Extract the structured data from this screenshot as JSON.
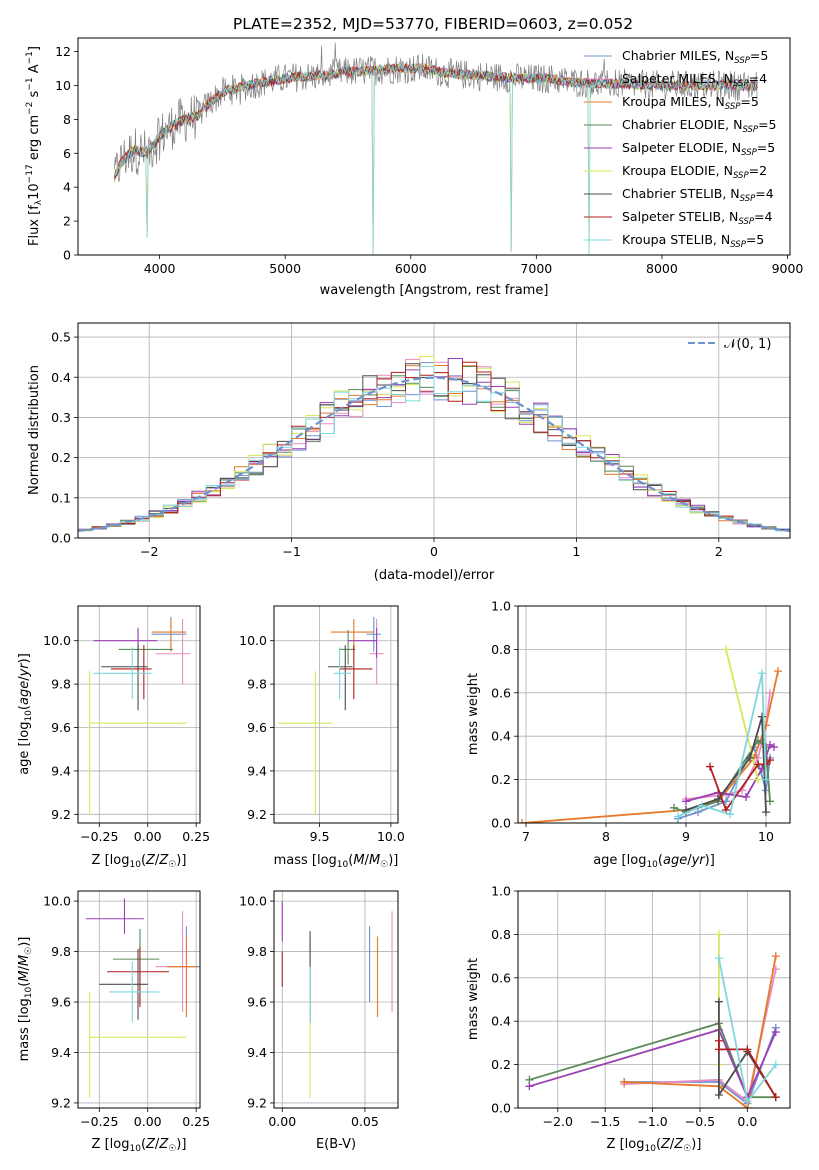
{
  "figure_title": "PLATE=2352, MJD=53770, FIBERID=0603, z=0.052",
  "model_colors": [
    "#6f93d0",
    "#e58ec3",
    "#e6792a",
    "#5a8a5a",
    "#9b3fb5",
    "#d6e85a",
    "#4d4d4d",
    "#b01f1f",
    "#7fd6dc"
  ],
  "chart_data": [
    {
      "id": "spectrum",
      "type": "line",
      "xlabel": "wavelength [Angstrom, rest frame]",
      "ylabel": "Flux [f_λ10^-17 erg cm^-2 s^-1 A^-1]",
      "xlim": [
        3350,
        9020
      ],
      "ylim": [
        0,
        12.8
      ],
      "xticks": [
        4000,
        5000,
        6000,
        7000,
        8000,
        9000
      ],
      "yticks": [
        0,
        2,
        4,
        6,
        8,
        10,
        12
      ],
      "grid": false,
      "legend_position": "right",
      "legend": [
        {
          "label": "Chabrier MILES, N",
          "sub": "SSP",
          "suffix": "=5"
        },
        {
          "label": "Salpeter MILES, N",
          "sub": "SSP",
          "suffix": "=4"
        },
        {
          "label": "Kroupa MILES, N",
          "sub": "SSP",
          "suffix": "=5"
        },
        {
          "label": "Chabrier ELODIE, N",
          "sub": "SSP",
          "suffix": "=5"
        },
        {
          "label": "Salpeter ELODIE, N",
          "sub": "SSP",
          "suffix": "=5"
        },
        {
          "label": "Kroupa ELODIE, N",
          "sub": "SSP",
          "suffix": "=2"
        },
        {
          "label": "Chabrier STELIB, N",
          "sub": "SSP",
          "suffix": "=4"
        },
        {
          "label": "Salpeter STELIB, N",
          "sub": "SSP",
          "suffix": "=4"
        },
        {
          "label": "Kroupa STELIB, N",
          "sub": "SSP",
          "suffix": "=5"
        }
      ],
      "continuum": [
        [
          3640,
          4.6
        ],
        [
          3700,
          5.6
        ],
        [
          3800,
          6.2
        ],
        [
          3900,
          6.0
        ],
        [
          4000,
          7.0
        ],
        [
          4100,
          7.6
        ],
        [
          4200,
          8.0
        ],
        [
          4300,
          8.2
        ],
        [
          4400,
          9.0
        ],
        [
          4500,
          9.6
        ],
        [
          4700,
          10.0
        ],
        [
          4900,
          10.3
        ],
        [
          5100,
          10.5
        ],
        [
          5300,
          10.6
        ],
        [
          5500,
          10.8
        ],
        [
          5700,
          10.9
        ],
        [
          5900,
          11.0
        ],
        [
          6100,
          11.0
        ],
        [
          6300,
          10.7
        ],
        [
          6500,
          10.6
        ],
        [
          6700,
          10.5
        ],
        [
          6900,
          10.4
        ],
        [
          7100,
          10.4
        ],
        [
          7300,
          10.2
        ],
        [
          7500,
          10.1
        ],
        [
          7700,
          10.1
        ],
        [
          7900,
          10.0
        ],
        [
          8100,
          10.0
        ],
        [
          8300,
          10.0
        ],
        [
          8500,
          10.0
        ],
        [
          8700,
          10.0
        ]
      ],
      "observed_range": [
        3640,
        8760
      ],
      "dips": [
        [
          3900,
          1.0
        ],
        [
          5700,
          0.0
        ],
        [
          6800,
          0.2
        ],
        [
          7420,
          0.0
        ]
      ]
    },
    {
      "id": "residuals",
      "type": "step",
      "xlabel": "(data-model)/error",
      "ylabel": "Normed distribution",
      "xlim": [
        -2.5,
        2.5
      ],
      "ylim": [
        0,
        0.535
      ],
      "xticks": [
        -2,
        -1,
        0,
        1,
        2
      ],
      "yticks": [
        0.0,
        0.1,
        0.2,
        0.3,
        0.4,
        0.5
      ],
      "grid": true,
      "bin_width": 0.1,
      "legend": [
        {
          "label": "𝒩(0, 1)"
        }
      ],
      "legend_position": "top-right",
      "reference_curve": "normal(0,1)"
    },
    {
      "id": "age_vs_Z",
      "type": "errorbar",
      "xlabel": "Z [log10(Z/Z☉)]",
      "ylabel": "age  [log10(age/yr)]",
      "xlim": [
        -0.36,
        0.27
      ],
      "ylim": [
        9.16,
        10.16
      ],
      "xticks": [
        -0.25,
        0.0,
        0.25
      ],
      "yticks": [
        9.2,
        9.4,
        9.6,
        9.8,
        10.0
      ],
      "grid": true,
      "points": [
        {
          "x": 0.12,
          "y": 10.03,
          "xerr": [
            0.1,
            0.08
          ],
          "yerr": [
            0.08,
            0.08
          ],
          "series": 0
        },
        {
          "x": 0.18,
          "y": 9.94,
          "xerr": [
            0.14,
            0.04
          ],
          "yerr": [
            0.14,
            0.16
          ],
          "series": 1
        },
        {
          "x": 0.12,
          "y": 10.04,
          "xerr": [
            0.1,
            0.08
          ],
          "yerr": [
            0.09,
            0.06
          ],
          "series": 2
        },
        {
          "x": -0.05,
          "y": 9.96,
          "xerr": [
            0.1,
            0.18
          ],
          "yerr": [
            0.07,
            0.09
          ],
          "series": 3
        },
        {
          "x": -0.05,
          "y": 10.0,
          "xerr": [
            0.23,
            0.1
          ],
          "yerr": [
            0.08,
            0.06
          ],
          "series": 4
        },
        {
          "x": -0.3,
          "y": 9.62,
          "xerr": [
            0.0,
            0.5
          ],
          "yerr": [
            0.42,
            0.24
          ],
          "series": 5
        },
        {
          "x": -0.05,
          "y": 9.88,
          "xerr": [
            0.19,
            0.05
          ],
          "yerr": [
            0.2,
            0.1
          ],
          "series": 6
        },
        {
          "x": -0.02,
          "y": 9.87,
          "xerr": [
            0.17,
            0.04
          ],
          "yerr": [
            0.14,
            0.11
          ],
          "series": 7
        },
        {
          "x": -0.08,
          "y": 9.85,
          "xerr": [
            0.2,
            0.1
          ],
          "yerr": [
            0.12,
            0.12
          ],
          "series": 8
        }
      ]
    },
    {
      "id": "age_vs_mass",
      "type": "errorbar",
      "xlabel": "mass [log10(M/M☉)]",
      "ylabel": "",
      "xlim": [
        9.18,
        10.05
      ],
      "ylim": [
        9.16,
        10.16
      ],
      "xticks": [
        9.5,
        10.0
      ],
      "yticks": [
        9.2,
        9.4,
        9.6,
        9.8,
        10.0
      ],
      "grid": true,
      "points": [
        {
          "x": 9.88,
          "y": 10.03,
          "xerr": [
            0.05,
            0.05
          ],
          "yerr": [
            0.08,
            0.08
          ],
          "series": 0
        },
        {
          "x": 9.9,
          "y": 9.94,
          "xerr": [
            0.05,
            0.05
          ],
          "yerr": [
            0.14,
            0.16
          ],
          "series": 1
        },
        {
          "x": 9.74,
          "y": 10.04,
          "xerr": [
            0.16,
            0.14
          ],
          "yerr": [
            0.09,
            0.06
          ],
          "series": 2
        },
        {
          "x": 9.7,
          "y": 9.96,
          "xerr": [
            0.06,
            0.05
          ],
          "yerr": [
            0.07,
            0.09
          ],
          "series": 3
        },
        {
          "x": 9.9,
          "y": 10.0,
          "xerr": [
            0.2,
            0.0
          ],
          "yerr": [
            0.08,
            0.06
          ],
          "series": 4
        },
        {
          "x": 9.47,
          "y": 9.62,
          "xerr": [
            0.26,
            0.12
          ],
          "yerr": [
            0.42,
            0.24
          ],
          "series": 5
        },
        {
          "x": 9.68,
          "y": 9.88,
          "xerr": [
            0.12,
            0.05
          ],
          "yerr": [
            0.2,
            0.1
          ],
          "series": 6
        },
        {
          "x": 9.74,
          "y": 9.87,
          "xerr": [
            0.1,
            0.13
          ],
          "yerr": [
            0.14,
            0.11
          ],
          "series": 7
        },
        {
          "x": 9.64,
          "y": 9.85,
          "xerr": [
            0.04,
            0.08
          ],
          "yerr": [
            0.12,
            0.12
          ],
          "series": 8
        }
      ]
    },
    {
      "id": "mass_weight_vs_age",
      "type": "line",
      "xlabel": "age  [log10(age/yr)]",
      "ylabel": "mass weight",
      "xlim": [
        6.9,
        10.3
      ],
      "ylim": [
        0,
        1.0
      ],
      "xticks": [
        7,
        8,
        9,
        10
      ],
      "yticks": [
        0.0,
        0.2,
        0.4,
        0.6,
        0.8,
        1.0
      ],
      "grid": true,
      "series": [
        {
          "x": [
            8.9,
            9.15,
            9.5,
            9.85,
            10.0,
            10.05
          ],
          "y": [
            0.02,
            0.05,
            0.1,
            0.35,
            0.15,
            0.3
          ],
          "series": 0
        },
        {
          "x": [
            9.0,
            9.5,
            9.7,
            9.9,
            10.0,
            10.05
          ],
          "y": [
            0.11,
            0.13,
            0.15,
            0.3,
            0.45,
            0.6
          ],
          "series": 1
        },
        {
          "x": [
            6.95,
            9.0,
            9.4,
            9.85,
            10.0,
            10.15
          ],
          "y": [
            0.0,
            0.06,
            0.1,
            0.3,
            0.45,
            0.7
          ],
          "series": 2
        },
        {
          "x": [
            8.85,
            9.0,
            9.4,
            9.9,
            10.0,
            10.05
          ],
          "y": [
            0.07,
            0.05,
            0.1,
            0.38,
            0.35,
            0.1
          ],
          "series": 3
        },
        {
          "x": [
            9.0,
            9.4,
            9.75,
            9.95,
            10.05,
            10.1
          ],
          "y": [
            0.1,
            0.14,
            0.12,
            0.25,
            0.36,
            0.35
          ],
          "series": 4
        },
        {
          "x": [
            9.5,
            9.9
          ],
          "y": [
            0.8,
            0.2
          ],
          "series": 5
        },
        {
          "x": [
            9.0,
            9.4,
            9.8,
            9.95,
            10.0
          ],
          "y": [
            0.06,
            0.11,
            0.3,
            0.49,
            0.05
          ],
          "series": 6
        },
        {
          "x": [
            9.3,
            9.5,
            9.9,
            10.0,
            10.05
          ],
          "y": [
            0.26,
            0.06,
            0.27,
            0.27,
            0.29
          ],
          "series": 7
        },
        {
          "x": [
            8.9,
            9.2,
            9.55,
            9.95,
            10.0
          ],
          "y": [
            0.03,
            0.08,
            0.04,
            0.69,
            0.2
          ],
          "series": 8
        }
      ]
    },
    {
      "id": "mass_vs_Z",
      "type": "errorbar",
      "xlabel": "Z [log10(Z/Z☉)]",
      "ylabel": "mass [log10(M/M☉)]",
      "xlim": [
        -0.36,
        0.27
      ],
      "ylim": [
        9.18,
        10.04
      ],
      "xticks": [
        -0.25,
        0.0,
        0.25
      ],
      "yticks": [
        9.2,
        9.4,
        9.6,
        9.8,
        10.0
      ],
      "grid": true,
      "points": [
        {
          "x": 0.2,
          "y": 9.74,
          "xerr": [
            0.08,
            0.08
          ],
          "yerr": [
            0.14,
            0.16
          ],
          "series": 0
        },
        {
          "x": 0.18,
          "y": 9.74,
          "xerr": [
            0.14,
            0.04
          ],
          "yerr": [
            0.18,
            0.22
          ],
          "series": 1
        },
        {
          "x": 0.2,
          "y": 9.74,
          "xerr": [
            0.1,
            0.06
          ],
          "yerr": [
            0.2,
            0.12
          ],
          "series": 2
        },
        {
          "x": -0.04,
          "y": 9.77,
          "xerr": [
            0.14,
            0.1
          ],
          "yerr": [
            0.18,
            0.12
          ],
          "series": 3
        },
        {
          "x": -0.12,
          "y": 9.93,
          "xerr": [
            0.2,
            0.1
          ],
          "yerr": [
            0.06,
            0.08
          ],
          "series": 4
        },
        {
          "x": -0.3,
          "y": 9.46,
          "xerr": [
            0.0,
            0.5
          ],
          "yerr": [
            0.24,
            0.18
          ],
          "series": 5
        },
        {
          "x": -0.05,
          "y": 9.67,
          "xerr": [
            0.2,
            0.05
          ],
          "yerr": [
            0.14,
            0.14
          ],
          "series": 6
        },
        {
          "x": -0.04,
          "y": 9.72,
          "xerr": [
            0.17,
            0.15
          ],
          "yerr": [
            0.14,
            0.1
          ],
          "series": 7
        },
        {
          "x": -0.08,
          "y": 9.64,
          "xerr": [
            0.12,
            0.14
          ],
          "yerr": [
            0.12,
            0.12
          ],
          "series": 8
        }
      ]
    },
    {
      "id": "mass_vs_ebv",
      "type": "errorbar",
      "xlabel": "E(B-V)",
      "ylabel": "",
      "xlim": [
        -0.005,
        0.07
      ],
      "ylim": [
        9.18,
        10.04
      ],
      "xticks": [
        0.0,
        0.05
      ],
      "yticks": [
        9.2,
        9.4,
        9.6,
        9.8,
        10.0
      ],
      "grid": true,
      "points": [
        {
          "x": 0.0528,
          "y": 9.74,
          "xerr": [
            0,
            0
          ],
          "yerr": [
            0.14,
            0.16
          ],
          "series": 0
        },
        {
          "x": 0.0664,
          "y": 9.74,
          "xerr": [
            0,
            0
          ],
          "yerr": [
            0.18,
            0.22
          ],
          "series": 1
        },
        {
          "x": 0.0576,
          "y": 9.74,
          "xerr": [
            0,
            0
          ],
          "yerr": [
            0.2,
            0.12
          ],
          "series": 2
        },
        {
          "x": 0.0168,
          "y": 9.72,
          "xerr": [
            0,
            0
          ],
          "yerr": [
            0.2,
            0.16
          ],
          "series": 3
        },
        {
          "x": 0.0,
          "y": 9.9,
          "xerr": [
            0,
            0
          ],
          "yerr": [
            0.06,
            0.1
          ],
          "series": 4
        },
        {
          "x": 0.0168,
          "y": 9.46,
          "xerr": [
            0,
            0
          ],
          "yerr": [
            0.24,
            0.18
          ],
          "series": 5
        },
        {
          "x": 0.0168,
          "y": 9.7,
          "xerr": [
            0,
            0
          ],
          "yerr": [
            0.18,
            0.18
          ],
          "series": 6
        },
        {
          "x": 0.0,
          "y": 9.72,
          "xerr": [
            0,
            0
          ],
          "yerr": [
            0.06,
            0.08
          ],
          "series": 7
        },
        {
          "x": 0.0168,
          "y": 9.63,
          "xerr": [
            0,
            0
          ],
          "yerr": [
            0.11,
            0.11
          ],
          "series": 8
        }
      ]
    },
    {
      "id": "mass_weight_vs_Z",
      "type": "line",
      "xlabel": "Z [log10(Z/Z☉)]",
      "ylabel": "mass weight",
      "xlim": [
        -2.42,
        0.45
      ],
      "ylim": [
        0,
        1.0
      ],
      "xticks": [
        -2.0,
        -1.5,
        -1.0,
        -0.5,
        0.0
      ],
      "yticks": [
        0.0,
        0.2,
        0.4,
        0.6,
        0.8,
        1.0
      ],
      "grid": true,
      "series": [
        {
          "x": [
            -1.3,
            -0.3,
            0.0,
            0.3
          ],
          "y": [
            0.12,
            0.12,
            0.02,
            0.37
          ],
          "series": 0
        },
        {
          "x": [
            -1.3,
            -0.3,
            0.0,
            0.3
          ],
          "y": [
            0.11,
            0.13,
            0.03,
            0.64
          ],
          "series": 1
        },
        {
          "x": [
            -1.3,
            -0.3,
            0.0,
            0.3
          ],
          "y": [
            0.12,
            0.1,
            0.0,
            0.7
          ],
          "series": 2
        },
        {
          "x": [
            -2.3,
            -0.3,
            0.0,
            0.3
          ],
          "y": [
            0.13,
            0.39,
            0.05,
            0.05
          ],
          "series": 3
        },
        {
          "x": [
            -2.3,
            -0.3,
            0.0,
            0.3
          ],
          "y": [
            0.1,
            0.36,
            0.05,
            0.35
          ],
          "series": 4
        },
        {
          "x": [
            -0.3,
            -0.3
          ],
          "y": [
            0.8,
            0.2
          ],
          "series": 5
        },
        {
          "x": [
            -0.3,
            -0.3,
            0.0,
            0.3
          ],
          "y": [
            0.49,
            0.06,
            0.26,
            0.05
          ],
          "series": 6
        },
        {
          "x": [
            -0.3,
            -0.3,
            0.0,
            0.3
          ],
          "y": [
            0.31,
            0.27,
            0.27,
            0.05
          ],
          "series": 7
        },
        {
          "x": [
            -0.3,
            0.0,
            0.3
          ],
          "y": [
            0.69,
            0.03,
            0.2
          ],
          "series": 8
        }
      ]
    }
  ]
}
